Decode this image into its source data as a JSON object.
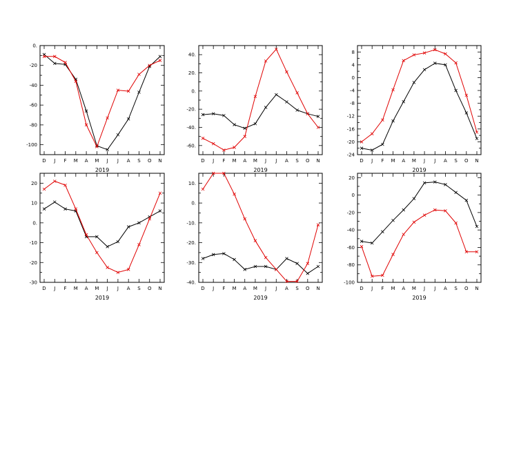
{
  "chart_data": [
    {
      "type": "line",
      "x_categories": [
        "D",
        "J",
        "F",
        "M",
        "A",
        "M",
        "J",
        "J",
        "A",
        "S",
        "O",
        "N"
      ],
      "xlabel": "2019",
      "ylim": [
        -110,
        0
      ],
      "yticks": [
        0,
        -20,
        -40,
        -60,
        -80,
        -100
      ],
      "ytick_labels": [
        "0.",
        "-20",
        "-40",
        "-60",
        "-80",
        "-100"
      ],
      "series": [
        {
          "color": "#000000",
          "values": [
            -9,
            -18,
            -19,
            -34,
            -66,
            -101,
            -105,
            -90,
            -74,
            -47,
            -21,
            -11
          ]
        },
        {
          "color": "#e00000",
          "values": [
            -11,
            -11,
            -17,
            -36,
            -80,
            -102,
            -73,
            -45,
            -46,
            -29,
            -20,
            -15
          ]
        }
      ]
    },
    {
      "type": "line",
      "x_categories": [
        "D",
        "J",
        "F",
        "M",
        "A",
        "M",
        "J",
        "J",
        "A",
        "S",
        "O",
        "N"
      ],
      "xlabel": "2019",
      "ylim": [
        -70,
        50
      ],
      "yticks": [
        40,
        20,
        0,
        -20,
        -40,
        -60
      ],
      "ytick_labels": [
        "40.",
        "20.",
        "0.",
        "-20.",
        "-40.",
        "-60."
      ],
      "series": [
        {
          "color": "#000000",
          "values": [
            -26,
            -25,
            -27,
            -37,
            -41,
            -36,
            -18,
            -4,
            -12,
            -21,
            -25,
            -28
          ]
        },
        {
          "color": "#e00000",
          "values": [
            -52,
            -58,
            -65,
            -62,
            -50,
            -6,
            33,
            46,
            21,
            -2,
            -25,
            -40
          ]
        }
      ]
    },
    {
      "type": "line",
      "x_categories": [
        "D",
        "J",
        "F",
        "M",
        "A",
        "M",
        "J",
        "J",
        "A",
        "S",
        "O",
        "N"
      ],
      "xlabel": "2019",
      "ylim": [
        -24,
        10
      ],
      "yticks": [
        8,
        4,
        0,
        -4,
        -8,
        -12,
        -16,
        -20,
        -24
      ],
      "ytick_labels": [
        "8",
        "4",
        "0",
        "-4",
        "-8",
        "-12",
        "-16",
        "-20",
        "-24"
      ],
      "series": [
        {
          "color": "#000000",
          "values": [
            -22,
            -22.6,
            -20.8,
            -13.5,
            -7.5,
            -1.5,
            2.5,
            4.5,
            4,
            -4,
            -11,
            -19
          ]
        },
        {
          "color": "#e00000",
          "values": [
            -20,
            -17.5,
            -13.2,
            -3.8,
            5.3,
            7.1,
            7.7,
            8.7,
            7.4,
            4.6,
            -5.5,
            -17
          ]
        }
      ]
    },
    {
      "type": "line",
      "x_categories": [
        "D",
        "J",
        "F",
        "M",
        "A",
        "M",
        "J",
        "J",
        "A",
        "S",
        "O",
        "N"
      ],
      "xlabel": "2019",
      "ylim": [
        -30,
        25
      ],
      "yticks": [
        20,
        10,
        0,
        -10,
        -20,
        -30
      ],
      "ytick_labels": [
        "20",
        "10",
        "0.",
        "-10",
        "-20",
        "-30"
      ],
      "series": [
        {
          "color": "#000000",
          "values": [
            7,
            10.5,
            7,
            6,
            -7,
            -7,
            -12,
            -9.5,
            -2,
            0,
            3,
            6
          ]
        },
        {
          "color": "#e00000",
          "values": [
            17,
            21,
            19,
            7,
            -6,
            -15,
            -22.5,
            -25,
            -23.5,
            -11,
            2,
            15
          ]
        }
      ]
    },
    {
      "type": "line",
      "x_categories": [
        "D",
        "J",
        "F",
        "M",
        "A",
        "M",
        "J",
        "J",
        "A",
        "S",
        "O",
        "N"
      ],
      "xlabel": "2019",
      "ylim": [
        -40,
        15
      ],
      "yticks": [
        10,
        0,
        -10,
        -20,
        -30,
        -40
      ],
      "ytick_labels": [
        "10.",
        "0.",
        "-10.",
        "-20.",
        "-30.",
        "-40."
      ],
      "series": [
        {
          "color": "#000000",
          "values": [
            -28,
            -26,
            -25.5,
            -28.5,
            -33.5,
            -32,
            -32,
            -33.5,
            -28,
            -30.5,
            -35.5,
            -32
          ]
        },
        {
          "color": "#e00000",
          "values": [
            7,
            15,
            15,
            4.5,
            -8,
            -19,
            -27.5,
            -33.5,
            -39.5,
            -39.5,
            -30.5,
            -11
          ]
        }
      ]
    },
    {
      "type": "line",
      "x_categories": [
        "D",
        "J",
        "F",
        "M",
        "A",
        "M",
        "J",
        "J",
        "A",
        "S",
        "O",
        "N"
      ],
      "xlabel": "2019",
      "ylim": [
        -100,
        25
      ],
      "yticks": [
        20,
        0,
        -20,
        -40,
        -60,
        -80,
        -100
      ],
      "ytick_labels": [
        "20",
        "0",
        "-20",
        "-40",
        "-60",
        "-80",
        "-100"
      ],
      "series": [
        {
          "color": "#000000",
          "values": [
            -53,
            -55,
            -42,
            -29,
            -17,
            -4,
            14,
            15,
            12,
            3,
            -6,
            -36
          ]
        },
        {
          "color": "#e00000",
          "values": [
            -59,
            -93,
            -92,
            -68,
            -45,
            -31,
            -23,
            -17,
            -18,
            -32,
            -65,
            -65
          ]
        }
      ]
    }
  ]
}
